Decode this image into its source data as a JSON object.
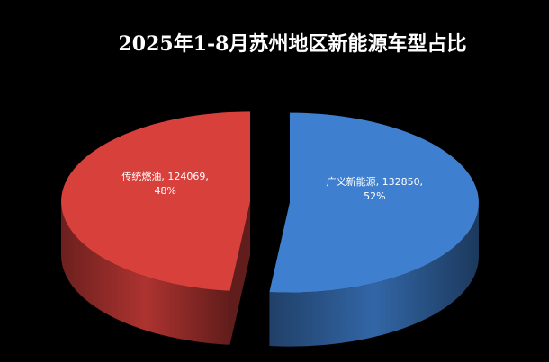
{
  "chart_data": {
    "type": "pie3d",
    "title": "2025年1-8月苏州地区新能源车型占比",
    "categories": [
      "广义新能源",
      "传统燃油"
    ],
    "values": [
      132850,
      124069
    ],
    "value_labels": [
      "广义新能源, 132850, 52%",
      "传统燃油, 124069, 48%"
    ],
    "colors": [
      "#3f7fcf",
      "#d8403c"
    ]
  }
}
